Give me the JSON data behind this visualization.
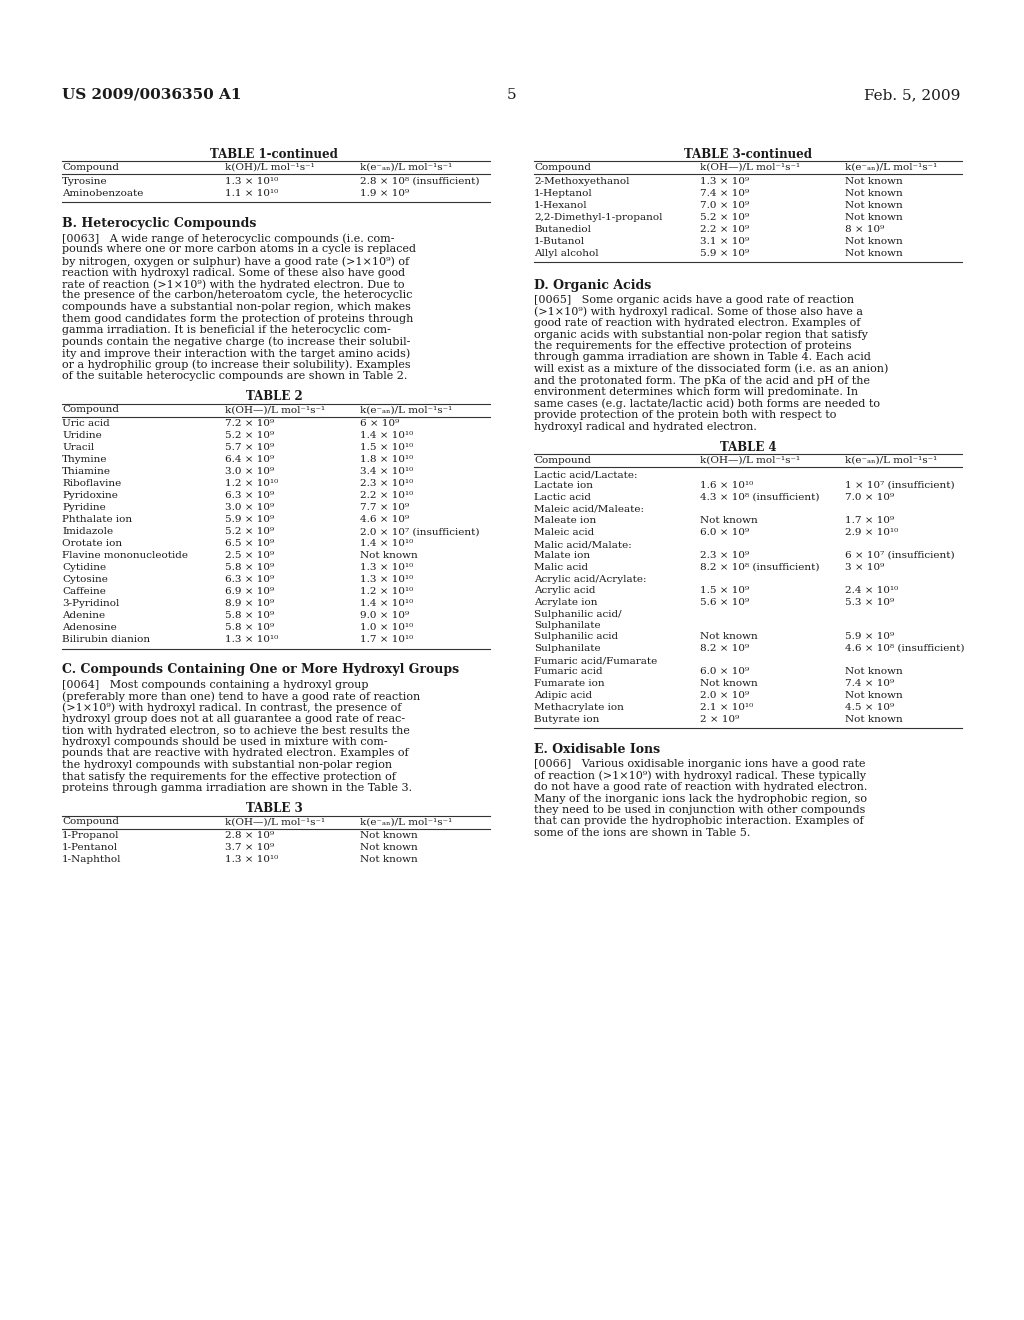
{
  "page_number": "5",
  "left_header": "US 2009/0036350 A1",
  "right_header": "Feb. 5, 2009",
  "background_color": "#ffffff",
  "table1_continued_title": "TABLE 1-continued",
  "table1_col1": "Compound",
  "table1_col2": "k(OH)/L mol⁻¹s⁻¹",
  "table1_col3": "k(e⁻ₐₙ)/L mol⁻¹s⁻¹",
  "table1_rows": [
    [
      "Tyrosine",
      "1.3 × 10¹⁰",
      "2.8 × 10⁸ (insufficient)"
    ],
    [
      "Aminobenzoate",
      "1.1 × 10¹⁰",
      "1.9 × 10⁹"
    ]
  ],
  "section_b_title": "B. Heterocyclic Compounds",
  "para_0063": "[0063]   A wide range of heterocyclic compounds (i.e. com-pounds where one or more carbon atoms in a cycle is replaced by nitrogen, oxygen or sulphur) have a good rate (>1×10⁹) of reaction with hydroxyl radical. Some of these also have good rate of reaction (>1×10⁹) with the hydrated electron. Due to the presence of the carbon/heteroatom cycle, the heterocyclic compounds have a substantial non-polar region, which makes them good candidates form the protection of proteins through gamma irradiation. It is beneficial if the heterocyclic com-pounds contain the negative charge (to increase their solubil-ity and improve their interaction with the target amino acids) or a hydrophilic group (to increase their solubility). Examples of the suitable heterocyclic compounds are shown in Table 2.",
  "table2_title": "TABLE 2",
  "table2_col1": "Compound",
  "table2_col2": "k(OH—)/L mol⁻¹s⁻¹",
  "table2_col3": "k(e⁻ₐₙ)/L mol⁻¹s⁻¹",
  "table2_rows": [
    [
      "Uric acid",
      "7.2 × 10⁹",
      "6 × 10⁹"
    ],
    [
      "Uridine",
      "5.2 × 10⁹",
      "1.4 × 10¹⁰"
    ],
    [
      "Uracil",
      "5.7 × 10⁹",
      "1.5 × 10¹⁰"
    ],
    [
      "Thymine",
      "6.4 × 10⁹",
      "1.8 × 10¹⁰"
    ],
    [
      "Thiamine",
      "3.0 × 10⁹",
      "3.4 × 10¹⁰"
    ],
    [
      "Riboflavine",
      "1.2 × 10¹⁰",
      "2.3 × 10¹⁰"
    ],
    [
      "Pyridoxine",
      "6.3 × 10⁹",
      "2.2 × 10¹⁰"
    ],
    [
      "Pyridine",
      "3.0 × 10⁹",
      "7.7 × 10⁹"
    ],
    [
      "Phthalate ion",
      "5.9 × 10⁹",
      "4.6 × 10⁹"
    ],
    [
      "Imidazole",
      "5.2 × 10⁹",
      "2.0 × 10⁷ (insufficient)"
    ],
    [
      "Orotate ion",
      "6.5 × 10⁹",
      "1.4 × 10¹⁰"
    ],
    [
      "Flavine mononucleotide",
      "2.5 × 10⁹",
      "Not known"
    ],
    [
      "Cytidine",
      "5.8 × 10⁹",
      "1.3 × 10¹⁰"
    ],
    [
      "Cytosine",
      "6.3 × 10⁹",
      "1.3 × 10¹⁰"
    ],
    [
      "Caffeine",
      "6.9 × 10⁹",
      "1.2 × 10¹⁰"
    ],
    [
      "3-Pyridinol",
      "8.9 × 10⁹",
      "1.4 × 10¹⁰"
    ],
    [
      "Adenine",
      "5.8 × 10⁹",
      "9.0 × 10⁹"
    ],
    [
      "Adenosine",
      "5.8 × 10⁹",
      "1.0 × 10¹⁰"
    ],
    [
      "Bilirubin dianion",
      "1.3 × 10¹⁰",
      "1.7 × 10¹⁰"
    ]
  ],
  "section_c_title": "C. Compounds Containing One or More Hydroxyl Groups",
  "para_0064_lines": [
    "[0064]   Most compounds containing a hydroxyl group",
    "(preferably more than one) tend to have a good rate of reaction",
    "(>1×10⁹) with hydroxyl radical. In contrast, the presence of",
    "hydroxyl group does not at all guarantee a good rate of reac-",
    "tion with hydrated electron, so to achieve the best results the",
    "hydroxyl compounds should be used in mixture with com-",
    "pounds that are reactive with hydrated electron. Examples of",
    "the hydroxyl compounds with substantial non-polar region",
    "that satisfy the requirements for the effective protection of",
    "proteins through gamma irradiation are shown in the Table 3."
  ],
  "table3_title": "TABLE 3",
  "table3_col1": "Compound",
  "table3_col2": "k(OH—)/L mol⁻¹s⁻¹",
  "table3_col3": "k(e⁻ₐₙ)/L mol⁻¹s⁻¹",
  "table3_rows": [
    [
      "1-Propanol",
      "2.8 × 10⁹",
      "Not known"
    ],
    [
      "1-Pentanol",
      "3.7 × 10⁹",
      "Not known"
    ],
    [
      "1-Naphthol",
      "1.3 × 10¹⁰",
      "Not known"
    ]
  ],
  "table3_continued_title": "TABLE 3-continued",
  "table3c_col1": "Compound",
  "table3c_col2": "k(OH—)/L mol⁻¹s⁻¹",
  "table3c_col3": "k(e⁻ₐₙ)/L mol⁻¹s⁻¹",
  "table3c_rows": [
    [
      "2-Methoxyethanol",
      "1.3 × 10⁹",
      "Not known"
    ],
    [
      "1-Heptanol",
      "7.4 × 10⁹",
      "Not known"
    ],
    [
      "1-Hexanol",
      "7.0 × 10⁹",
      "Not known"
    ],
    [
      "2,2-Dimethyl-1-propanol",
      "5.2 × 10⁹",
      "Not known"
    ],
    [
      "Butanediol",
      "2.2 × 10⁹",
      "8 × 10⁹"
    ],
    [
      "1-Butanol",
      "3.1 × 10⁹",
      "Not known"
    ],
    [
      "Allyl alcohol",
      "5.9 × 10⁹",
      "Not known"
    ]
  ],
  "section_d_title": "D. Organic Acids",
  "para_0065_lines": [
    "[0065]   Some organic acids have a good rate of reaction",
    "(>1×10⁹) with hydroxyl radical. Some of those also have a",
    "good rate of reaction with hydrated electron. Examples of",
    "organic acids with substantial non-polar region that satisfy",
    "the requirements for the effective protection of proteins",
    "through gamma irradiation are shown in Table 4. Each acid",
    "will exist as a mixture of the dissociated form (i.e. as an anion)",
    "and the protonated form. The pKa of the acid and pH of the",
    "environment determines which form will predominate. In",
    "same cases (e.g. lactate/lactic acid) both forms are needed to",
    "provide protection of the protein both with respect to",
    "hydroxyl radical and hydrated electron."
  ],
  "table4_title": "TABLE 4",
  "table4_col1": "Compound",
  "table4_col2": "k(OH—)/L mol⁻¹s⁻¹",
  "table4_col3": "k(e⁻ₐₙ)/L mol⁻¹s⁻¹",
  "table4_content": [
    {
      "label": "Lactic acid/Lactate:",
      "type": "subheader"
    },
    {
      "label": "Lactate ion",
      "col2": "1.6 × 10¹⁰",
      "col3": "1 × 10⁷ (insufficient)",
      "type": "row"
    },
    {
      "label": "Lactic acid",
      "col2": "4.3 × 10⁸ (insufficient)",
      "col3": "7.0 × 10⁹",
      "type": "row"
    },
    {
      "label": "Maleic acid/Maleate:",
      "type": "subheader"
    },
    {
      "label": "Maleate ion",
      "col2": "Not known",
      "col3": "1.7 × 10⁹",
      "type": "row"
    },
    {
      "label": "Maleic acid",
      "col2": "6.0 × 10⁹",
      "col3": "2.9 × 10¹⁰",
      "type": "row"
    },
    {
      "label": "Malic acid/Malate:",
      "type": "subheader"
    },
    {
      "label": "Malate ion",
      "col2": "2.3 × 10⁹",
      "col3": "6 × 10⁷ (insufficient)",
      "type": "row"
    },
    {
      "label": "Malic acid",
      "col2": "8.2 × 10⁸ (insufficient)",
      "col3": "3 × 10⁹",
      "type": "row"
    },
    {
      "label": "Acrylic acid/Acrylate:",
      "type": "subheader"
    },
    {
      "label": "Acrylic acid",
      "col2": "1.5 × 10⁹",
      "col3": "2.4 × 10¹⁰",
      "type": "row"
    },
    {
      "label": "Acrylate ion",
      "col2": "5.6 × 10⁹",
      "col3": "5.3 × 10⁹",
      "type": "row"
    },
    {
      "label": "Sulphanilic acid/",
      "type": "subheader"
    },
    {
      "label": "Sulphanilate",
      "type": "subheader_cont"
    },
    {
      "label": "Sulphanilic acid",
      "col2": "Not known",
      "col3": "5.9 × 10⁹",
      "type": "row"
    },
    {
      "label": "Sulphanilate",
      "col2": "8.2 × 10⁹",
      "col3": "4.6 × 10⁸ (insufficient)",
      "type": "row"
    },
    {
      "label": "Fumaric acid/Fumarate",
      "type": "subheader"
    },
    {
      "label": "Fumaric acid",
      "col2": "6.0 × 10⁹",
      "col3": "Not known",
      "type": "row"
    },
    {
      "label": "Fumarate ion",
      "col2": "Not known",
      "col3": "7.4 × 10⁹",
      "type": "row"
    },
    {
      "label": "Adipic acid",
      "col2": "2.0 × 10⁹",
      "col3": "Not known",
      "type": "row"
    },
    {
      "label": "Methacrylate ion",
      "col2": "2.1 × 10¹⁰",
      "col3": "4.5 × 10⁹",
      "type": "row"
    },
    {
      "label": "Butyrate ion",
      "col2": "2 × 10⁹",
      "col3": "Not known",
      "type": "row"
    }
  ],
  "section_e_title": "E. Oxidisable Ions",
  "para_0066_lines": [
    "[0066]   Various oxidisable inorganic ions have a good rate",
    "of reaction (>1×10⁹) with hydroxyl radical. These typically",
    "do not have a good rate of reaction with hydrated electron.",
    "Many of the inorganic ions lack the hydrophobic region, so",
    "they need to be used in conjunction with other compounds",
    "that can provide the hydrophobic interaction. Examples of",
    "some of the ions are shown in Table 5."
  ],
  "para_0063_lines": [
    "[0063]   A wide range of heterocyclic compounds (i.e. com-",
    "pounds where one or more carbon atoms in a cycle is replaced",
    "by nitrogen, oxygen or sulphur) have a good rate (>1×10⁹) of",
    "reaction with hydroxyl radical. Some of these also have good",
    "rate of reaction (>1×10⁹) with the hydrated electron. Due to",
    "the presence of the carbon/heteroatom cycle, the heterocyclic",
    "compounds have a substantial non-polar region, which makes",
    "them good candidates form the protection of proteins through",
    "gamma irradiation. It is beneficial if the heterocyclic com-",
    "pounds contain the negative charge (to increase their solubil-",
    "ity and improve their interaction with the target amino acids)",
    "or a hydrophilic group (to increase their solubility). Examples",
    "of the suitable heterocyclic compounds are shown in Table 2."
  ]
}
